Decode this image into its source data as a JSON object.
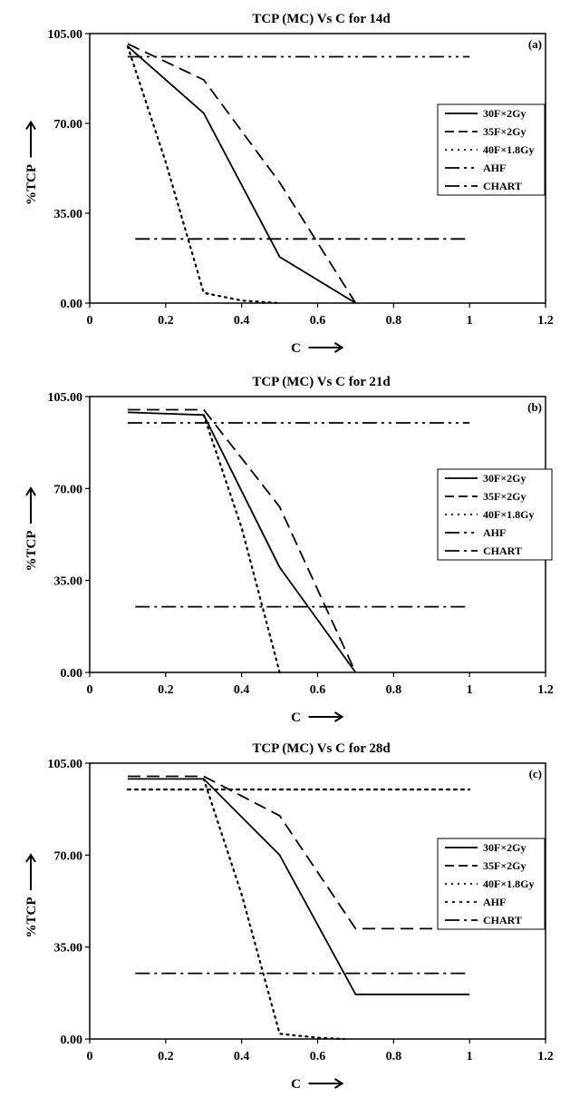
{
  "chart_data": [
    {
      "type": "line",
      "title": "TCP (MC) Vs C for 14d",
      "panel_label": "(a)",
      "xlabel": "C",
      "ylabel": "%TCP",
      "xlim": [
        0,
        1.2
      ],
      "ylim": [
        0,
        105
      ],
      "x_ticks": [
        "0",
        "0.2",
        "0.4",
        "0.6",
        "0.8",
        "1",
        "1.2"
      ],
      "y_ticks": [
        "0.00",
        "35.00",
        "70.00",
        "105.00"
      ],
      "grid": false,
      "legend_position": "right",
      "series": [
        {
          "name": "30F×2Gy",
          "style": "solid",
          "x": [
            0.1,
            0.3,
            0.5,
            0.7
          ],
          "y": [
            100,
            74,
            18,
            0
          ]
        },
        {
          "name": "35F×2Gy",
          "style": "dash",
          "x": [
            0.1,
            0.3,
            0.5,
            0.7
          ],
          "y": [
            101,
            87,
            47,
            0
          ]
        },
        {
          "name": "40F×1.8Gy",
          "style": "dot",
          "x": [
            0.1,
            0.2,
            0.3,
            0.4,
            0.5
          ],
          "y": [
            100,
            55,
            4,
            1,
            0
          ]
        },
        {
          "name": "AHF",
          "style": "dashdotdot",
          "x": [
            0.1,
            1.0
          ],
          "y": [
            96,
            96
          ]
        },
        {
          "name": "CHART",
          "style": "dashdot",
          "x": [
            0.12,
            1.0
          ],
          "y": [
            25,
            25
          ]
        }
      ]
    },
    {
      "type": "line",
      "title": "TCP (MC) Vs C for 21d",
      "panel_label": "(b)",
      "xlabel": "C",
      "ylabel": "%TCP",
      "xlim": [
        0,
        1.2
      ],
      "ylim": [
        0,
        105
      ],
      "x_ticks": [
        "0",
        "0.2",
        "0.4",
        "0.6",
        "0.8",
        "1",
        "1.2"
      ],
      "y_ticks": [
        "0.00",
        "35.00",
        "70.00",
        "105.00"
      ],
      "grid": false,
      "legend_position": "right",
      "series": [
        {
          "name": "30F×2Gy",
          "style": "solid",
          "x": [
            0.1,
            0.3,
            0.5,
            0.7
          ],
          "y": [
            99,
            98,
            40,
            0
          ]
        },
        {
          "name": "35F×2Gy",
          "style": "dash",
          "x": [
            0.1,
            0.3,
            0.5,
            0.7
          ],
          "y": [
            100,
            100,
            63,
            0
          ]
        },
        {
          "name": "40F×1.8Gy",
          "style": "dot",
          "x": [
            0.3,
            0.4,
            0.5
          ],
          "y": [
            98,
            55,
            0
          ]
        },
        {
          "name": "AHF",
          "style": "dashdotdot",
          "x": [
            0.1,
            1.0
          ],
          "y": [
            95,
            95
          ]
        },
        {
          "name": "CHART",
          "style": "dashdot",
          "x": [
            0.12,
            1.0
          ],
          "y": [
            25,
            25
          ]
        }
      ]
    },
    {
      "type": "line",
      "title": "TCP (MC) Vs C for 28d",
      "panel_label": "(c)",
      "xlabel": "C",
      "ylabel": "%TCP",
      "xlim": [
        0,
        1.2
      ],
      "ylim": [
        0,
        105
      ],
      "x_ticks": [
        "0",
        "0.2",
        "0.4",
        "0.6",
        "0.8",
        "1",
        "1.2"
      ],
      "y_ticks": [
        "0.00",
        "35.00",
        "70.00",
        "105.00"
      ],
      "grid": false,
      "legend_position": "right",
      "series": [
        {
          "name": "30F×2Gy",
          "style": "solid",
          "x": [
            0.1,
            0.3,
            0.5,
            0.7,
            1.0
          ],
          "y": [
            99,
            99,
            70,
            17,
            17
          ]
        },
        {
          "name": "35F×2Gy",
          "style": "dash",
          "x": [
            0.1,
            0.3,
            0.5,
            0.7,
            1.0
          ],
          "y": [
            100,
            100,
            85,
            42,
            42
          ]
        },
        {
          "name": "40F×1.8Gy",
          "style": "dot",
          "x": [
            0.3,
            0.4,
            0.5,
            0.6,
            0.67
          ],
          "y": [
            99,
            55,
            2,
            0.5,
            0
          ]
        },
        {
          "name": "AHF",
          "style": "dotted-line",
          "x": [
            0.1,
            1.0
          ],
          "y": [
            95,
            95
          ]
        },
        {
          "name": "CHART",
          "style": "dashdot",
          "x": [
            0.12,
            1.0
          ],
          "y": [
            25,
            25
          ]
        }
      ]
    }
  ]
}
